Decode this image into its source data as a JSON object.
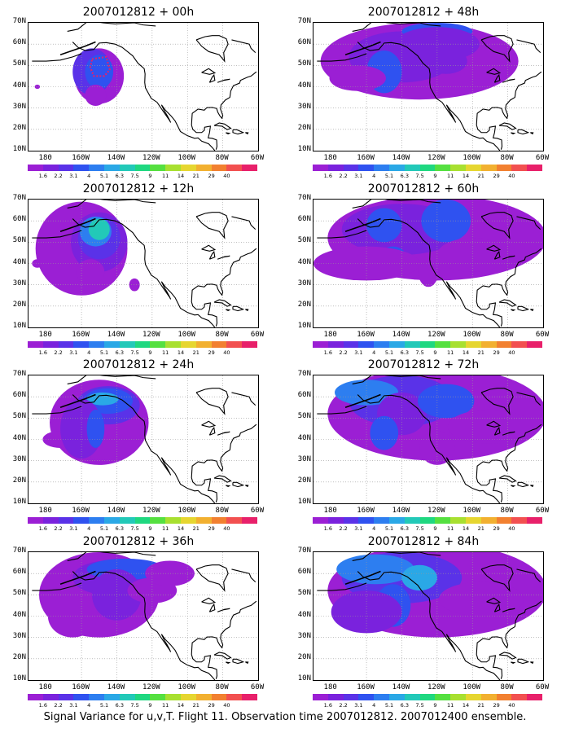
{
  "caption": "Signal Variance for u,v,T. Flight 11. Observation time 2007012812. 2007012400 ensemble.",
  "lat_labels": [
    "70N",
    "60N",
    "50N",
    "40N",
    "30N",
    "20N",
    "10N"
  ],
  "lon_labels": [
    "180",
    "160W",
    "140W",
    "120W",
    "100W",
    "80W",
    "60W"
  ],
  "colorbar": {
    "colors": [
      "#9b1fd4",
      "#7a22dd",
      "#5a32e8",
      "#2f52f0",
      "#2d7ef0",
      "#2aa8e6",
      "#22c9b8",
      "#1fd880",
      "#55e040",
      "#a8e030",
      "#e6d630",
      "#f2b030",
      "#f28030",
      "#f25050",
      "#e8206a"
    ],
    "labels": [
      "1.6",
      "2.2",
      "3.1",
      "4",
      "5.1",
      "6.3",
      "7.5",
      "9",
      "11",
      "14",
      "21",
      "29",
      "40"
    ]
  },
  "panels": [
    {
      "title": "2007012812 + 00h",
      "lead": "00h"
    },
    {
      "title": "2007012812 + 12h",
      "lead": "12h"
    },
    {
      "title": "2007012812 + 24h",
      "lead": "24h"
    },
    {
      "title": "2007012812 + 36h",
      "lead": "36h"
    },
    {
      "title": "2007012812 + 48h",
      "lead": "48h"
    },
    {
      "title": "2007012812 + 60h",
      "lead": "60h"
    },
    {
      "title": "2007012812 + 72h",
      "lead": "72h"
    },
    {
      "title": "2007012812 + 84h",
      "lead": "84h"
    }
  ]
}
